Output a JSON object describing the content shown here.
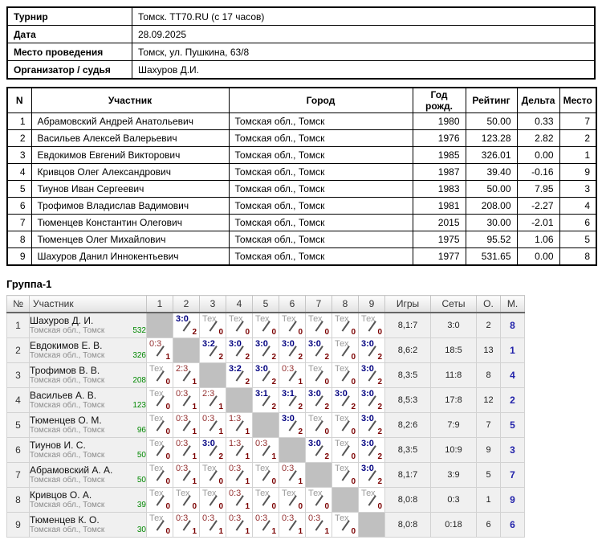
{
  "info_table": {
    "rows": [
      {
        "label": "Турнир",
        "value": "Томск. TT70.RU (с 17 часов)"
      },
      {
        "label": "Дата",
        "value": "28.09.2025"
      },
      {
        "label": "Место проведения",
        "value": "Томск, ул. Пушкина, 63/8"
      },
      {
        "label": "Организатор / судья",
        "value": "Шахуров Д.И."
      }
    ]
  },
  "participants_table": {
    "headers": [
      "N",
      "Участник",
      "Город",
      "Год рожд.",
      "Рейтинг",
      "Дельта",
      "Место"
    ],
    "rows": [
      {
        "n": "1",
        "name": "Абрамовский Андрей Анатольевич",
        "city": "Томская обл., Томск",
        "year": "1980",
        "rating": "50.00",
        "delta": "0.33",
        "place": "7"
      },
      {
        "n": "2",
        "name": "Васильев Алексей Валерьевич",
        "city": "Томская обл., Томск",
        "year": "1976",
        "rating": "123.28",
        "delta": "2.82",
        "place": "2"
      },
      {
        "n": "3",
        "name": "Евдокимов Евгений Викторович",
        "city": "Томская обл., Томск",
        "year": "1985",
        "rating": "326.01",
        "delta": "0.00",
        "place": "1"
      },
      {
        "n": "4",
        "name": "Кривцов Олег Александрович",
        "city": "Томская обл., Томск",
        "year": "1987",
        "rating": "39.40",
        "delta": "-0.16",
        "place": "9"
      },
      {
        "n": "5",
        "name": "Тиунов Иван Сергеевич",
        "city": "Томская обл., Томск",
        "year": "1983",
        "rating": "50.00",
        "delta": "7.95",
        "place": "3"
      },
      {
        "n": "6",
        "name": "Трофимов Владислав Вадимович",
        "city": "Томская обл., Томск",
        "year": "1981",
        "rating": "208.00",
        "delta": "-2.27",
        "place": "4"
      },
      {
        "n": "7",
        "name": "Тюменцев Константин Олегович",
        "city": "Томская обл., Томск",
        "year": "2015",
        "rating": "30.00",
        "delta": "-2.01",
        "place": "6"
      },
      {
        "n": "8",
        "name": "Тюменцев Олег Михайлович",
        "city": "Томская обл., Томск",
        "year": "1975",
        "rating": "95.52",
        "delta": "1.06",
        "place": "5"
      },
      {
        "n": "9",
        "name": "Шахуров Данил Иннокентьевич",
        "city": "Томская обл., Томск",
        "year": "1977",
        "rating": "531.65",
        "delta": "0.00",
        "place": "8"
      }
    ]
  },
  "group": {
    "title": "Группа-1",
    "headers": [
      "№",
      "Участник",
      "1",
      "2",
      "3",
      "4",
      "5",
      "6",
      "7",
      "8",
      "9",
      "Игры",
      "Сеты",
      "О.",
      "М."
    ],
    "tech_label": "Тех",
    "rows": [
      {
        "num": "1",
        "name": "Шахуров Д. И.",
        "region": "Томская обл., Томск",
        "rating": "532",
        "cells": [
          {
            "t": "self"
          },
          {
            "t": "win",
            "s": "3:0",
            "p": "2"
          },
          {
            "t": "tech",
            "p": "0"
          },
          {
            "t": "tech",
            "p": "0"
          },
          {
            "t": "tech",
            "p": "0"
          },
          {
            "t": "tech",
            "p": "0"
          },
          {
            "t": "tech",
            "p": "0"
          },
          {
            "t": "tech",
            "p": "0"
          },
          {
            "t": "tech",
            "p": "0"
          }
        ],
        "games": "8,1:7",
        "sets": "3:0",
        "points": "2",
        "place": "8"
      },
      {
        "num": "2",
        "name": "Евдокимов Е. В.",
        "region": "Томская обл., Томск",
        "rating": "326",
        "cells": [
          {
            "t": "loss",
            "s": "0:3",
            "p": "1"
          },
          {
            "t": "self"
          },
          {
            "t": "win",
            "s": "3:2",
            "p": "2"
          },
          {
            "t": "win",
            "s": "3:0",
            "p": "2"
          },
          {
            "t": "win",
            "s": "3:0",
            "p": "2"
          },
          {
            "t": "win",
            "s": "3:0",
            "p": "2"
          },
          {
            "t": "win",
            "s": "3:0",
            "p": "2"
          },
          {
            "t": "tech",
            "p": "0"
          },
          {
            "t": "win",
            "s": "3:0",
            "p": "2"
          }
        ],
        "games": "8,6:2",
        "sets": "18:5",
        "points": "13",
        "place": "1"
      },
      {
        "num": "3",
        "name": "Трофимов В. В.",
        "region": "Томская обл., Томск",
        "rating": "208",
        "cells": [
          {
            "t": "tech",
            "p": "0"
          },
          {
            "t": "loss",
            "s": "2:3",
            "p": "1"
          },
          {
            "t": "self"
          },
          {
            "t": "win",
            "s": "3:2",
            "p": "2"
          },
          {
            "t": "win",
            "s": "3:0",
            "p": "2"
          },
          {
            "t": "loss",
            "s": "0:3",
            "p": "1"
          },
          {
            "t": "tech",
            "p": "0"
          },
          {
            "t": "tech",
            "p": "0"
          },
          {
            "t": "win",
            "s": "3:0",
            "p": "2"
          }
        ],
        "games": "8,3:5",
        "sets": "11:8",
        "points": "8",
        "place": "4"
      },
      {
        "num": "4",
        "name": "Васильев А. В.",
        "region": "Томская обл., Томск",
        "rating": "123",
        "cells": [
          {
            "t": "tech",
            "p": "0"
          },
          {
            "t": "loss",
            "s": "0:3",
            "p": "1"
          },
          {
            "t": "loss",
            "s": "2:3",
            "p": "1"
          },
          {
            "t": "self"
          },
          {
            "t": "win",
            "s": "3:1",
            "p": "2"
          },
          {
            "t": "win",
            "s": "3:1",
            "p": "2"
          },
          {
            "t": "win",
            "s": "3:0",
            "p": "2"
          },
          {
            "t": "win",
            "s": "3:0",
            "p": "2"
          },
          {
            "t": "win",
            "s": "3:0",
            "p": "2"
          }
        ],
        "games": "8,5:3",
        "sets": "17:8",
        "points": "12",
        "place": "2"
      },
      {
        "num": "5",
        "name": "Тюменцев О. М.",
        "region": "Томская обл., Томск",
        "rating": "96",
        "cells": [
          {
            "t": "tech",
            "p": "0"
          },
          {
            "t": "loss",
            "s": "0:3",
            "p": "1"
          },
          {
            "t": "loss",
            "s": "0:3",
            "p": "1"
          },
          {
            "t": "loss",
            "s": "1:3",
            "p": "1"
          },
          {
            "t": "self"
          },
          {
            "t": "win",
            "s": "3:0",
            "p": "2"
          },
          {
            "t": "tech",
            "p": "0"
          },
          {
            "t": "tech",
            "p": "0"
          },
          {
            "t": "win",
            "s": "3:0",
            "p": "2"
          }
        ],
        "games": "8,2:6",
        "sets": "7:9",
        "points": "7",
        "place": "5"
      },
      {
        "num": "6",
        "name": "Тиунов И. С.",
        "region": "Томская обл., Томск",
        "rating": "50",
        "cells": [
          {
            "t": "tech",
            "p": "0"
          },
          {
            "t": "loss",
            "s": "0:3",
            "p": "1"
          },
          {
            "t": "win",
            "s": "3:0",
            "p": "2"
          },
          {
            "t": "loss",
            "s": "1:3",
            "p": "1"
          },
          {
            "t": "loss",
            "s": "0:3",
            "p": "1"
          },
          {
            "t": "self"
          },
          {
            "t": "win",
            "s": "3:0",
            "p": "2"
          },
          {
            "t": "tech",
            "p": "0"
          },
          {
            "t": "win",
            "s": "3:0",
            "p": "2"
          }
        ],
        "games": "8,3:5",
        "sets": "10:9",
        "points": "9",
        "place": "3"
      },
      {
        "num": "7",
        "name": "Абрамовский А. А.",
        "region": "Томская обл., Томск",
        "rating": "50",
        "cells": [
          {
            "t": "tech",
            "p": "0"
          },
          {
            "t": "loss",
            "s": "0:3",
            "p": "1"
          },
          {
            "t": "tech",
            "p": "0"
          },
          {
            "t": "loss",
            "s": "0:3",
            "p": "1"
          },
          {
            "t": "tech",
            "p": "0"
          },
          {
            "t": "loss",
            "s": "0:3",
            "p": "1"
          },
          {
            "t": "self"
          },
          {
            "t": "tech",
            "p": "0"
          },
          {
            "t": "win",
            "s": "3:0",
            "p": "2"
          }
        ],
        "games": "8,1:7",
        "sets": "3:9",
        "points": "5",
        "place": "7"
      },
      {
        "num": "8",
        "name": "Кривцов О. А.",
        "region": "Томская обл., Томск",
        "rating": "39",
        "cells": [
          {
            "t": "tech",
            "p": "0"
          },
          {
            "t": "tech",
            "p": "0"
          },
          {
            "t": "tech",
            "p": "0"
          },
          {
            "t": "loss",
            "s": "0:3",
            "p": "1"
          },
          {
            "t": "tech",
            "p": "0"
          },
          {
            "t": "tech",
            "p": "0"
          },
          {
            "t": "tech",
            "p": "0"
          },
          {
            "t": "self"
          },
          {
            "t": "tech",
            "p": "0"
          }
        ],
        "games": "8,0:8",
        "sets": "0:3",
        "points": "1",
        "place": "9"
      },
      {
        "num": "9",
        "name": "Тюменцев К. О.",
        "region": "Томская обл., Томск",
        "rating": "30",
        "cells": [
          {
            "t": "tech",
            "p": "0"
          },
          {
            "t": "loss",
            "s": "0:3",
            "p": "1"
          },
          {
            "t": "loss",
            "s": "0:3",
            "p": "1"
          },
          {
            "t": "loss",
            "s": "0:3",
            "p": "1"
          },
          {
            "t": "loss",
            "s": "0:3",
            "p": "1"
          },
          {
            "t": "loss",
            "s": "0:3",
            "p": "1"
          },
          {
            "t": "loss",
            "s": "0:3",
            "p": "1"
          },
          {
            "t": "tech",
            "p": "0"
          },
          {
            "t": "self"
          }
        ],
        "games": "8,0:8",
        "sets": "0:18",
        "points": "6",
        "place": "6"
      }
    ]
  },
  "colors": {
    "win_score": "#000080",
    "loss_score": "#943030",
    "tech_text": "#9a9a9a",
    "points_digit": "#7b0000",
    "rating_green": "#008800",
    "place_blue": "#2222aa",
    "self_cell_gray": "#c0c0c0",
    "slash_gray": "#555555"
  }
}
